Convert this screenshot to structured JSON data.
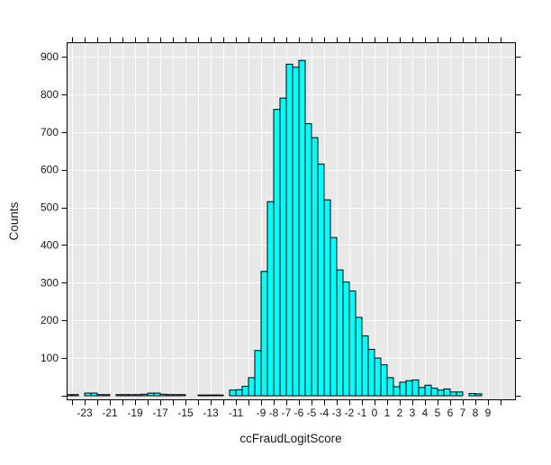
{
  "chart_data": {
    "type": "bar",
    "subtype": "histogram",
    "title": "",
    "xlabel": "ccFraudLogitScore",
    "ylabel": "Counts",
    "bin_width": 0.5,
    "bins": [
      [
        -24.5,
        3
      ],
      [
        -24.0,
        3
      ],
      [
        -23.0,
        7
      ],
      [
        -22.5,
        7
      ],
      [
        -22.0,
        3
      ],
      [
        -21.5,
        3
      ],
      [
        -20.5,
        3
      ],
      [
        -20.0,
        3
      ],
      [
        -19.5,
        3
      ],
      [
        -19.0,
        3
      ],
      [
        -18.5,
        4
      ],
      [
        -18.0,
        7
      ],
      [
        -17.5,
        7
      ],
      [
        -17.0,
        4
      ],
      [
        -16.5,
        3
      ],
      [
        -16.0,
        3
      ],
      [
        -15.5,
        3
      ],
      [
        -14.0,
        2
      ],
      [
        -13.5,
        2
      ],
      [
        -13.0,
        2
      ],
      [
        -12.5,
        2
      ],
      [
        -11.5,
        15
      ],
      [
        -11.0,
        16
      ],
      [
        -10.5,
        25
      ],
      [
        -10.0,
        48
      ],
      [
        -9.5,
        120
      ],
      [
        -9.0,
        330
      ],
      [
        -8.5,
        515
      ],
      [
        -8.0,
        760
      ],
      [
        -7.5,
        790
      ],
      [
        -7.0,
        880
      ],
      [
        -6.5,
        872
      ],
      [
        -6.0,
        890
      ],
      [
        -5.5,
        722
      ],
      [
        -5.0,
        685
      ],
      [
        -4.5,
        615
      ],
      [
        -4.0,
        520
      ],
      [
        -3.5,
        420
      ],
      [
        -3.0,
        334
      ],
      [
        -2.5,
        302
      ],
      [
        -2.0,
        278
      ],
      [
        -1.5,
        208
      ],
      [
        -1.0,
        159
      ],
      [
        -0.5,
        123
      ],
      [
        0.0,
        100
      ],
      [
        0.5,
        82
      ],
      [
        1.0,
        48
      ],
      [
        1.5,
        24
      ],
      [
        2.0,
        36
      ],
      [
        2.5,
        40
      ],
      [
        3.0,
        42
      ],
      [
        3.5,
        22
      ],
      [
        4.0,
        28
      ],
      [
        4.5,
        20
      ],
      [
        5.0,
        15
      ],
      [
        5.5,
        18
      ],
      [
        6.0,
        10
      ],
      [
        6.5,
        10
      ],
      [
        7.5,
        6
      ],
      [
        8.0,
        5
      ]
    ],
    "x_ticks": {
      "from": -24,
      "to": 10,
      "step": 1
    },
    "x_tick_labels": [
      -23,
      -21,
      -19,
      -17,
      -15,
      -13,
      -11,
      -9,
      -8,
      -7,
      -6,
      -5,
      -4,
      -3,
      -2,
      -1,
      0,
      1,
      2,
      3,
      4,
      5,
      6,
      7,
      8,
      9
    ],
    "y_ticks": {
      "from": 0,
      "to": 900,
      "step": 100
    },
    "y_tick_labels": [
      100,
      200,
      300,
      400,
      500,
      600,
      700,
      800,
      900
    ],
    "x_range": [
      -24.45,
      11.2
    ],
    "y_range": [
      0,
      950
    ],
    "grid": true,
    "legend": "none",
    "colors": {
      "bar_fill": "#00ffff",
      "bar_stroke": "#000000",
      "plot_bg": "#e8e8e8",
      "grid": "#ffffff",
      "frame": "#000000",
      "text": "#1a1a1a",
      "page_bg": "#ffffff"
    }
  }
}
